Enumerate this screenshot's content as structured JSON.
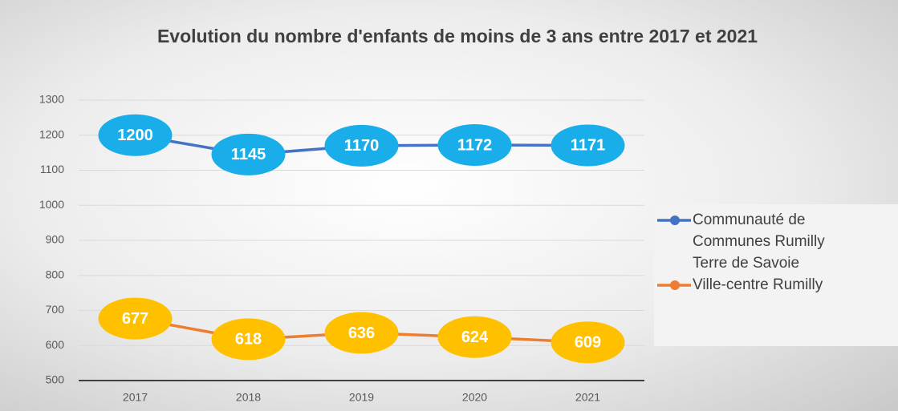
{
  "chart_data": {
    "type": "line",
    "title": "Evolution du nombre d'enfants de moins de 3 ans entre 2017 et 2021",
    "categories": [
      "2017",
      "2018",
      "2019",
      "2020",
      "2021"
    ],
    "series": [
      {
        "name": "Communauté de Communes Rumilly Terre de Savoie",
        "color": "#4472c4",
        "label_color": "#19aeea",
        "values": [
          1200,
          1145,
          1170,
          1172,
          1171
        ]
      },
      {
        "name": "Ville-centre Rumilly",
        "color": "#ed7d31",
        "label_color": "#ffc000",
        "values": [
          677,
          618,
          636,
          624,
          609
        ]
      }
    ],
    "ylim": [
      500,
      1300
    ],
    "yticks": [
      500,
      600,
      700,
      800,
      900,
      1000,
      1100,
      1200,
      1300
    ],
    "grid": true,
    "legend": "right"
  }
}
